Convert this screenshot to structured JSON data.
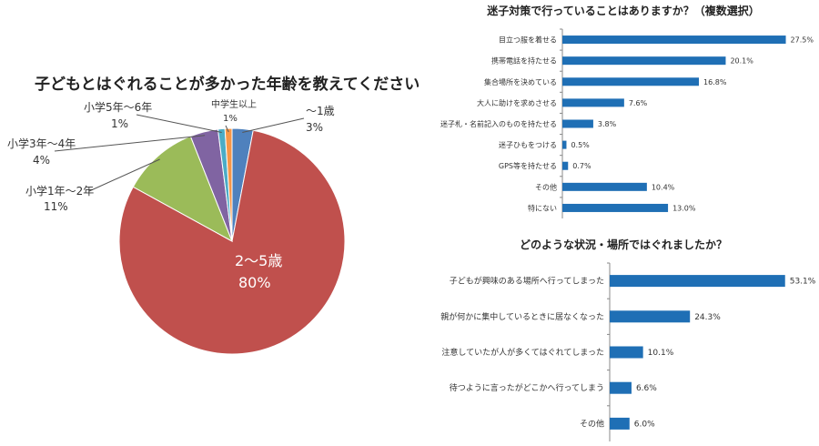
{
  "chart_data": [
    {
      "type": "pie",
      "title": "子どもとはぐれることが多かった年齢を教えてください",
      "slices": [
        {
          "label": "〜1歳",
          "value": 3,
          "value_label": "3%",
          "color": "#4f81bd"
        },
        {
          "label": "2〜5歳",
          "value": 80,
          "value_label": "80%",
          "color": "#c0504d"
        },
        {
          "label": "小学1年〜2年",
          "value": 11,
          "value_label": "11%",
          "color": "#9bbb59"
        },
        {
          "label": "小学3年〜4年",
          "value": 4,
          "value_label": "4%",
          "color": "#8064a2"
        },
        {
          "label": "小学5年〜6年",
          "value": 1,
          "value_label": "1%",
          "color": "#4bacc6"
        },
        {
          "label": "中学生以上",
          "value": 1,
          "value_label": "1%",
          "color": "#f79646"
        }
      ]
    },
    {
      "type": "bar",
      "orientation": "horizontal",
      "title": "迷子対策で行っていることはありますか？（複数選択）",
      "categories": [
        "目立つ服を着せる",
        "携帯電話を持たせる",
        "集合場所を決めている",
        "大人に助けを求めさせる",
        "迷子札・名前記入のものを持たせる",
        "迷子ひもをつける",
        "GPS等を持たせる",
        "その他",
        "特にない"
      ],
      "values": [
        27.5,
        20.1,
        16.8,
        7.6,
        3.8,
        0.5,
        0.7,
        10.4,
        13.0
      ],
      "value_labels": [
        "27.5%",
        "20.1%",
        "16.8%",
        "7.6%",
        "3.8%",
        "0.5%",
        "0.7%",
        "10.4%",
        "13.0%"
      ],
      "xlim": [
        0,
        28
      ],
      "color": "#1f6fb5"
    },
    {
      "type": "bar",
      "orientation": "horizontal",
      "title": "どのような状況・場所ではぐれましたか？",
      "categories": [
        "子どもが興味のある場所へ行ってしまった",
        "親が何かに集中しているときに居なくなった",
        "注意していたが人が多くてはぐれてしまった",
        "待つように言ったがどこかへ行ってしまう",
        "その他"
      ],
      "values": [
        53.1,
        24.3,
        10.1,
        6.6,
        6.0
      ],
      "value_labels": [
        "53.1%",
        "24.3%",
        "10.1%",
        "6.6%",
        "6.0%"
      ],
      "xlim": [
        0,
        54
      ],
      "color": "#1f6fb5"
    }
  ]
}
